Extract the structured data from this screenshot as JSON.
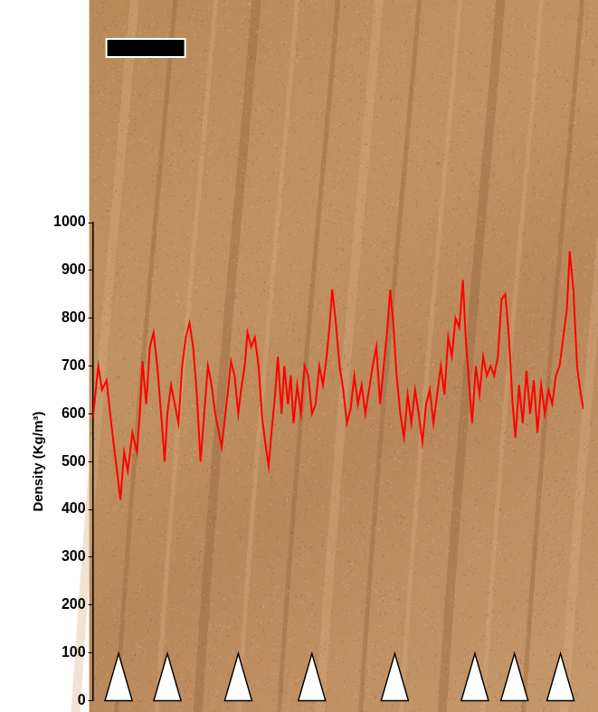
{
  "chart_data": {
    "type": "line",
    "y_label": "Density (Kg/m³)",
    "x": [
      0,
      6,
      10,
      15,
      20,
      25,
      30,
      34,
      38,
      43,
      48,
      51,
      54,
      58,
      62,
      66,
      70,
      75,
      78,
      81,
      85,
      89,
      93,
      97,
      101,
      105,
      109,
      113,
      117,
      121,
      125,
      129,
      133,
      137,
      140,
      144,
      147,
      150,
      154,
      158,
      161,
      165,
      168,
      172,
      176,
      180,
      184,
      188,
      191,
      194,
      198,
      201,
      205,
      208,
      212,
      215,
      218,
      222,
      226,
      230,
      234,
      238,
      242,
      246,
      250,
      254,
      257,
      260,
      264,
      268,
      272,
      276,
      280,
      284,
      288,
      292,
      296,
      300,
      304,
      308,
      312,
      316,
      320,
      323,
      326,
      330,
      334,
      338,
      342,
      346,
      350,
      354,
      358,
      362,
      366,
      370,
      374,
      378,
      382,
      386,
      390,
      394,
      398,
      402,
      405,
      408,
      412,
      416,
      420,
      424,
      428,
      432,
      436,
      440,
      444,
      448,
      452,
      456,
      459,
      463,
      467,
      471,
      475,
      479,
      483,
      487,
      491,
      495,
      499,
      503,
      507,
      511,
      515,
      518,
      522,
      526,
      530,
      533
    ],
    "values": [
      590,
      700,
      650,
      670,
      580,
      500,
      420,
      520,
      480,
      560,
      520,
      600,
      710,
      620,
      740,
      770,
      700,
      580,
      500,
      600,
      660,
      620,
      580,
      700,
      760,
      790,
      740,
      640,
      500,
      600,
      700,
      660,
      600,
      560,
      530,
      600,
      650,
      710,
      680,
      600,
      650,
      700,
      770,
      740,
      760,
      700,
      590,
      530,
      490,
      560,
      640,
      720,
      600,
      700,
      620,
      680,
      580,
      660,
      600,
      700,
      680,
      600,
      620,
      700,
      660,
      720,
      780,
      860,
      790,
      700,
      650,
      580,
      610,
      680,
      620,
      660,
      600,
      650,
      700,
      740,
      620,
      700,
      780,
      860,
      800,
      680,
      600,
      550,
      640,
      580,
      650,
      600,
      540,
      620,
      650,
      580,
      640,
      700,
      640,
      760,
      720,
      800,
      780,
      880,
      760,
      680,
      580,
      700,
      640,
      720,
      680,
      700,
      680,
      720,
      840,
      850,
      760,
      620,
      550,
      660,
      580,
      690,
      600,
      670,
      560,
      660,
      600,
      650,
      620,
      680,
      700,
      760,
      820,
      940,
      860,
      700,
      640,
      610
    ],
    "color": "#ff0000",
    "marker": "none",
    "line_style": "solid",
    "xlim": [
      0,
      533
    ],
    "ylim": [
      0,
      1000
    ],
    "yticks": [
      0,
      100,
      200,
      300,
      400,
      500,
      600,
      700,
      800,
      900,
      1000
    ],
    "tick_labels": "y",
    "grid": false,
    "markers_x": [
      28,
      81,
      158,
      238,
      328,
      415,
      458,
      508
    ]
  }
}
